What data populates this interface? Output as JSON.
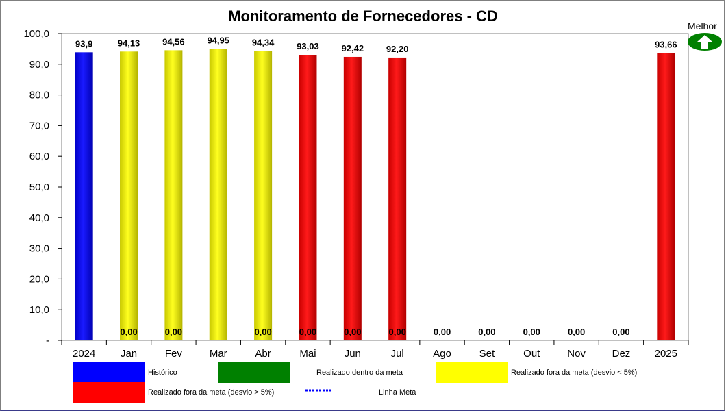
{
  "chart_data": {
    "type": "bar",
    "title": "Monitoramento de Fornecedores - CD",
    "categories": [
      "2024",
      "Jan",
      "Fev",
      "Mar",
      "Abr",
      "Mai",
      "Jun",
      "Jul",
      "Ago",
      "Set",
      "Out",
      "Nov",
      "Dez",
      "2025"
    ],
    "values": [
      93.9,
      94.13,
      94.56,
      94.95,
      94.34,
      93.03,
      92.42,
      92.2,
      null,
      null,
      null,
      null,
      null,
      93.66
    ],
    "value_labels": [
      "93,9",
      "94,13",
      "94,56",
      "94,95",
      "94,34",
      "93,03",
      "92,42",
      "92,20",
      "",
      "",
      "",
      "",
      "",
      "93,66"
    ],
    "bar_colors": [
      "#0000ff",
      "#ffff00",
      "#ffff00",
      "#ffff00",
      "#ffff00",
      "#ff0000",
      "#ff0000",
      "#ff0000",
      "",
      "",
      "",
      "",
      "",
      "#ff0000"
    ],
    "bottom_labels": [
      "",
      "0,00",
      "0,00",
      "",
      "0,00",
      "0,00",
      "0,00",
      "0,00",
      "0,00",
      "0,00",
      "0,00",
      "0,00",
      "0,00",
      ""
    ],
    "ylim": [
      0,
      100
    ],
    "yticks": [
      0,
      10,
      20,
      30,
      40,
      50,
      60,
      70,
      80,
      90,
      100
    ],
    "ytick_labels": [
      "-",
      "10,0",
      "20,0",
      "30,0",
      "40,0",
      "50,0",
      "60,0",
      "70,0",
      "80,0",
      "90,0",
      "100,0"
    ],
    "grid": false,
    "legend": {
      "placement": "bottom",
      "entries": [
        {
          "label": "Histórico",
          "color": "#0000ff",
          "kind": "swatch"
        },
        {
          "label": "Realizado dentro da meta",
          "color": "#008000",
          "kind": "swatch"
        },
        {
          "label": "Realizado fora da meta (desvio < 5%)",
          "color": "#ffff00",
          "kind": "swatch"
        },
        {
          "label": "Realizado fora da meta (desvio > 5%)",
          "color": "#ff0000",
          "kind": "swatch"
        },
        {
          "label": "Linha Meta",
          "color": "#0000ff",
          "kind": "dotted-line"
        }
      ]
    }
  },
  "indicator": {
    "label": "Melhor",
    "direction": "up",
    "icon": "up-arrow-icon",
    "color": "#008000"
  }
}
